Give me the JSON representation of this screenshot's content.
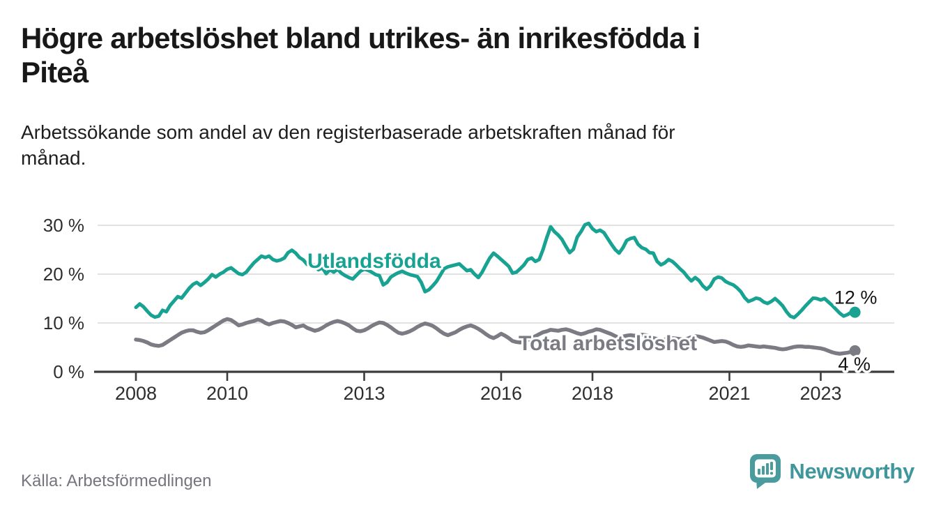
{
  "header": {
    "title": "Högre arbetslöshet bland utrikes- än inrikesfödda i Piteå",
    "title_lines": [
      "Högre arbetslöshet bland utrikes- än inrikesfödda i",
      "Piteå"
    ],
    "subtitle": "Arbetssökande som andel av den registerbaserade arbetskraften månad för månad.",
    "subtitle_lines": [
      "Arbetssökande som andel av den registerbaserade arbetskraften månad för",
      "månad."
    ]
  },
  "chart_data": {
    "type": "line",
    "title": "Högre arbetslöshet bland utrikes- än inrikesfödda i Piteå",
    "subtitle": "Arbetssökande som andel av den registerbaserade arbetskraften månad för månad.",
    "frequency": "monthly",
    "x_start": "2008-01",
    "x_end": "2023-10",
    "xlabel": "",
    "ylabel": "",
    "ylim": [
      0,
      32
    ],
    "y_ticks": [
      0,
      10,
      20,
      30
    ],
    "y_tick_labels": [
      "0 %",
      "10 %",
      "20 %",
      "30 %"
    ],
    "x_tick_years": [
      2008,
      2010,
      2013,
      2016,
      2018,
      2021,
      2023
    ],
    "x_tick_labels": [
      "2008",
      "2010",
      "2013",
      "2016",
      "2018",
      "2021",
      "2023"
    ],
    "grid": "horizontal",
    "legend_position": "inline-labels",
    "series": [
      {
        "name": "Utlandsfödda",
        "color": "#17a292",
        "end_label": "12 %",
        "values": [
          13.2,
          13.9,
          13.3,
          12.4,
          11.6,
          11.2,
          11.4,
          12.6,
          12.3,
          13.6,
          14.5,
          15.4,
          15.1,
          16.1,
          17.1,
          17.9,
          18.3,
          17.7,
          18.3,
          19.0,
          19.9,
          19.4,
          20.0,
          20.4,
          21.0,
          21.3,
          20.7,
          20.1,
          19.9,
          20.4,
          21.4,
          22.3,
          23.0,
          23.7,
          23.4,
          23.7,
          23.0,
          22.7,
          22.9,
          23.3,
          24.4,
          24.9,
          24.3,
          23.4,
          22.9,
          22.0,
          22.4,
          21.7,
          20.9,
          21.3,
          20.1,
          20.9,
          20.4,
          21.0,
          20.2,
          19.7,
          19.3,
          19.0,
          19.8,
          20.6,
          21.0,
          20.8,
          20.4,
          19.9,
          19.7,
          17.8,
          18.3,
          19.4,
          19.9,
          20.3,
          20.6,
          20.2,
          19.9,
          19.7,
          19.5,
          18.3,
          16.4,
          16.8,
          17.6,
          18.5,
          19.8,
          21.1,
          21.5,
          21.7,
          21.9,
          22.1,
          21.4,
          20.7,
          20.9,
          20.0,
          19.3,
          20.4,
          21.9,
          23.3,
          24.3,
          23.7,
          23.0,
          22.3,
          21.6,
          20.2,
          20.4,
          21.1,
          21.9,
          23.0,
          23.3,
          22.6,
          23.0,
          25.0,
          27.5,
          29.7,
          28.7,
          28.0,
          27.1,
          25.7,
          24.4,
          25.1,
          27.6,
          28.7,
          30.1,
          30.4,
          29.3,
          28.7,
          29.0,
          28.5,
          27.3,
          26.1,
          25.0,
          24.3,
          25.4,
          26.9,
          27.3,
          27.5,
          26.1,
          25.4,
          25.1,
          24.4,
          24.3,
          22.6,
          21.9,
          22.3,
          23.0,
          22.6,
          21.9,
          21.1,
          20.4,
          19.4,
          18.6,
          19.3,
          18.7,
          17.6,
          16.9,
          17.6,
          19.0,
          19.4,
          19.2,
          18.5,
          18.1,
          17.8,
          17.2,
          16.4,
          15.2,
          14.4,
          14.7,
          15.1,
          14.9,
          14.3,
          14.0,
          14.4,
          15.0,
          14.3,
          13.5,
          12.3,
          11.4,
          11.1,
          11.8,
          12.6,
          13.5,
          14.3,
          15.1,
          15.0,
          14.7,
          15.0,
          14.3,
          13.6,
          12.8,
          12.0,
          11.4,
          11.7,
          12.2,
          12.2
        ]
      },
      {
        "name": "Total arbetslöshet",
        "color": "#7b7b83",
        "end_label": "4 %",
        "values": [
          6.6,
          6.5,
          6.3,
          6.0,
          5.6,
          5.4,
          5.3,
          5.5,
          6.0,
          6.5,
          7.0,
          7.5,
          8.0,
          8.3,
          8.5,
          8.5,
          8.2,
          8.0,
          8.1,
          8.5,
          9.0,
          9.5,
          10.0,
          10.5,
          10.8,
          10.6,
          10.1,
          9.5,
          9.7,
          10.0,
          10.2,
          10.4,
          10.7,
          10.5,
          10.0,
          9.7,
          10.0,
          10.2,
          10.4,
          10.3,
          10.0,
          9.6,
          9.1,
          9.3,
          9.5,
          9.0,
          8.7,
          8.4,
          8.6,
          9.0,
          9.5,
          9.9,
          10.2,
          10.4,
          10.2,
          9.9,
          9.5,
          8.9,
          8.4,
          8.3,
          8.5,
          8.9,
          9.4,
          9.8,
          10.1,
          10.0,
          9.6,
          9.1,
          8.5,
          8.0,
          7.8,
          8.0,
          8.3,
          8.7,
          9.2,
          9.6,
          9.9,
          9.7,
          9.4,
          8.9,
          8.3,
          7.8,
          7.5,
          7.8,
          8.1,
          8.6,
          9.0,
          9.3,
          9.5,
          9.2,
          8.8,
          8.3,
          7.7,
          7.2,
          6.9,
          7.3,
          7.8,
          7.4,
          6.9,
          6.3,
          6.1,
          6.0,
          6.2,
          6.5,
          6.9,
          7.3,
          7.7,
          8.1,
          8.3,
          8.6,
          8.5,
          8.4,
          8.6,
          8.7,
          8.5,
          8.2,
          7.9,
          7.7,
          7.9,
          8.2,
          8.4,
          8.7,
          8.6,
          8.3,
          8.0,
          7.7,
          7.3,
          7.0,
          7.2,
          7.4,
          7.5,
          7.4,
          7.3,
          7.6,
          7.5,
          7.2,
          6.9,
          6.7,
          6.5,
          6.6,
          6.8,
          6.9,
          6.8,
          6.7,
          6.6,
          6.8,
          7.1,
          7.3,
          7.2,
          7.0,
          6.7,
          6.4,
          6.1,
          6.2,
          6.3,
          6.2,
          5.9,
          5.5,
          5.2,
          5.1,
          5.2,
          5.4,
          5.3,
          5.2,
          5.1,
          5.2,
          5.1,
          5.0,
          4.9,
          4.7,
          4.6,
          4.7,
          4.9,
          5.1,
          5.2,
          5.2,
          5.1,
          5.1,
          5.0,
          4.9,
          4.8,
          4.6,
          4.3,
          4.0,
          3.8,
          3.7,
          3.8,
          3.9,
          4.1,
          4.3
        ]
      }
    ]
  },
  "footer": {
    "source": "Källa: Arbetsförmedlingen",
    "logo_text": "Newsworthy"
  },
  "colors": {
    "accent_teal": "#17a292",
    "series_gray": "#7b7b83",
    "gridline": "#d9d9d9",
    "axis": "#3c3c3c",
    "text_dark": "#181818",
    "source_text": "#75757d",
    "logo_teal": "#3f979b"
  }
}
